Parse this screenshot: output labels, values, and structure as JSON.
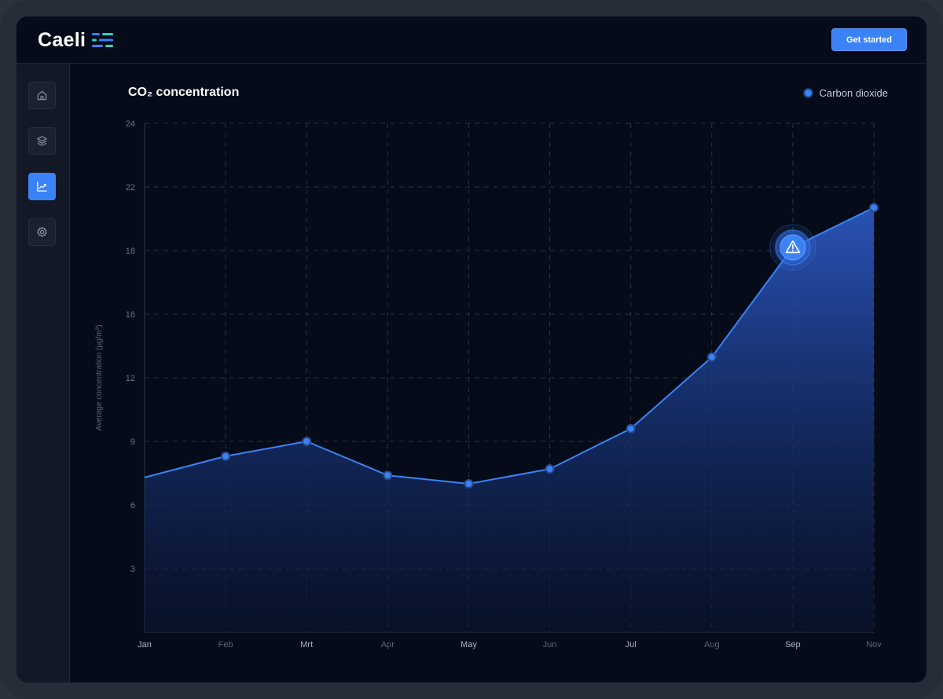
{
  "app": {
    "brand": "Caeli",
    "cta_label": "Get started"
  },
  "sidebar": {
    "items": [
      {
        "icon": "home-icon",
        "active": false
      },
      {
        "icon": "layers-icon",
        "active": false
      },
      {
        "icon": "chart-line-icon",
        "active": true
      },
      {
        "icon": "gear-icon",
        "active": false
      }
    ]
  },
  "colors": {
    "accent": "#3b82f6",
    "background": "#060b1a",
    "sidebar": "#121826",
    "grid": "#2a3244"
  },
  "chart_data": {
    "type": "area",
    "title": "CO₂ concentration",
    "ylabel": "Average concentration (µg/m³)",
    "xlabel": "",
    "categories": [
      "Jan",
      "Feb",
      "Mrt",
      "Apr",
      "May",
      "Jun",
      "Jul",
      "Aug",
      "Sep",
      "Nov"
    ],
    "yticks": [
      "24",
      "22",
      "18",
      "16",
      "12",
      "9",
      "6",
      "3"
    ],
    "series": [
      {
        "name": "Carbon dioxide",
        "values": [
          7.3,
          8.3,
          9.0,
          7.4,
          7.0,
          7.7,
          9.6,
          13.3,
          18.2,
          20.7
        ]
      }
    ],
    "alert": {
      "category": "Sep",
      "icon": "warning-icon"
    },
    "grid": true,
    "legend_position": "top-right"
  }
}
